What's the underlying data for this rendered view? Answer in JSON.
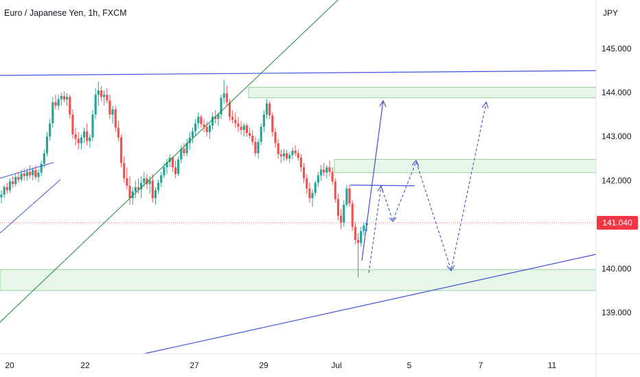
{
  "chart_data": {
    "type": "candlestick",
    "title": "Euro / Japanese Yen, 1h, FXCM",
    "currency_label": "JPY",
    "y_ticks": [
      "145.000",
      "144.000",
      "143.000",
      "142.000",
      "141.000",
      "140.000",
      "139.000"
    ],
    "y_tick_values": [
      145,
      144,
      143,
      142,
      141,
      140,
      139
    ],
    "x_ticks": [
      "20",
      "22",
      "27",
      "29",
      "Jul",
      "5",
      "7",
      "11"
    ],
    "last_price": 141.04,
    "last_price_label": "141.040",
    "ylim": [
      138.2,
      146.1
    ],
    "colors": {
      "up": "#26a69a",
      "down": "#ef5350",
      "price_label_bg": "#f23645",
      "zone_fill": "#e8f5e9",
      "zone_border": "#81c784",
      "blue_line": "#3f51d8",
      "green_line": "#1b8a3c",
      "projection": "#4050c8"
    },
    "zones": [
      {
        "name": "resistance-zone-top",
        "low": 143.88,
        "high": 144.12
      },
      {
        "name": "resistance-zone-mid",
        "low": 142.18,
        "high": 142.48
      },
      {
        "name": "support-zone",
        "low": 139.5,
        "high": 139.98
      }
    ],
    "candles": [
      [
        141.62,
        141.78,
        141.48,
        141.68
      ],
      [
        141.68,
        141.9,
        141.6,
        141.85
      ],
      [
        141.85,
        141.95,
        141.7,
        141.78
      ],
      [
        141.78,
        142.05,
        141.72,
        141.98
      ],
      [
        141.98,
        142.1,
        141.84,
        141.92
      ],
      [
        141.92,
        142.15,
        141.86,
        142.08
      ],
      [
        142.08,
        142.2,
        141.95,
        142.02
      ],
      [
        142.02,
        142.25,
        141.96,
        142.16
      ],
      [
        142.16,
        142.28,
        142.0,
        142.1
      ],
      [
        142.1,
        142.28,
        142.0,
        142.2
      ],
      [
        142.2,
        142.35,
        142.05,
        142.12
      ],
      [
        142.12,
        142.3,
        142.0,
        142.24
      ],
      [
        142.24,
        142.34,
        142.02,
        142.08
      ],
      [
        142.08,
        142.26,
        141.96,
        142.18
      ],
      [
        142.18,
        142.45,
        142.1,
        142.38
      ],
      [
        142.38,
        142.7,
        142.3,
        142.62
      ],
      [
        142.62,
        143.1,
        142.55,
        143.0
      ],
      [
        143.0,
        143.4,
        142.9,
        143.3
      ],
      [
        143.3,
        143.9,
        143.2,
        143.78
      ],
      [
        143.78,
        143.95,
        143.62,
        143.7
      ],
      [
        143.7,
        143.96,
        143.6,
        143.85
      ],
      [
        143.85,
        144.0,
        143.7,
        143.92
      ],
      [
        143.92,
        144.02,
        143.78,
        143.84
      ],
      [
        143.84,
        143.98,
        143.7,
        143.9
      ],
      [
        143.9,
        143.95,
        143.4,
        143.5
      ],
      [
        143.5,
        143.62,
        142.95,
        143.05
      ],
      [
        143.05,
        143.2,
        142.8,
        142.95
      ],
      [
        142.95,
        143.1,
        142.7,
        142.85
      ],
      [
        142.85,
        143.05,
        142.7,
        142.98
      ],
      [
        142.98,
        143.2,
        142.85,
        143.12
      ],
      [
        143.12,
        143.3,
        142.8,
        142.9
      ],
      [
        142.9,
        143.05,
        142.75,
        142.98
      ],
      [
        142.98,
        143.6,
        142.9,
        143.5
      ],
      [
        143.5,
        144.1,
        143.4,
        143.95
      ],
      [
        143.95,
        144.25,
        143.7,
        144.05
      ],
      [
        144.05,
        144.15,
        143.8,
        143.9
      ],
      [
        143.9,
        144.05,
        143.7,
        143.95
      ],
      [
        143.95,
        144.1,
        143.75,
        143.82
      ],
      [
        143.82,
        143.95,
        143.4,
        143.5
      ],
      [
        143.5,
        143.7,
        143.3,
        143.62
      ],
      [
        143.62,
        143.7,
        143.1,
        143.2
      ],
      [
        143.2,
        143.35,
        142.9,
        142.98
      ],
      [
        142.98,
        143.05,
        142.3,
        142.4
      ],
      [
        142.4,
        142.55,
        141.95,
        142.05
      ],
      [
        142.05,
        142.3,
        141.8,
        141.88
      ],
      [
        141.88,
        142.1,
        141.45,
        141.6
      ],
      [
        141.6,
        141.85,
        141.45,
        141.75
      ],
      [
        141.75,
        142.0,
        141.6,
        141.85
      ],
      [
        141.85,
        142.05,
        141.7,
        141.8
      ],
      [
        141.8,
        142.1,
        141.6,
        141.95
      ],
      [
        141.95,
        142.2,
        141.85,
        142.05
      ],
      [
        142.05,
        142.15,
        141.8,
        141.92
      ],
      [
        141.92,
        142.1,
        141.7,
        142.0
      ],
      [
        142.0,
        142.15,
        141.5,
        141.6
      ],
      [
        141.6,
        141.85,
        141.45,
        141.78
      ],
      [
        141.78,
        142.02,
        141.7,
        141.95
      ],
      [
        141.95,
        142.2,
        141.85,
        142.12
      ],
      [
        142.12,
        142.4,
        142.05,
        142.3
      ],
      [
        142.3,
        142.5,
        142.15,
        142.42
      ],
      [
        142.42,
        142.6,
        142.3,
        142.52
      ],
      [
        142.52,
        142.55,
        142.2,
        142.3
      ],
      [
        142.3,
        142.45,
        142.05,
        142.15
      ],
      [
        142.15,
        142.55,
        142.1,
        142.48
      ],
      [
        142.48,
        142.8,
        142.4,
        142.72
      ],
      [
        142.72,
        142.85,
        142.55,
        142.62
      ],
      [
        142.62,
        142.95,
        142.55,
        142.85
      ],
      [
        142.85,
        143.1,
        142.7,
        142.98
      ],
      [
        142.98,
        143.2,
        142.85,
        143.12
      ],
      [
        143.12,
        143.4,
        143.0,
        143.3
      ],
      [
        143.3,
        143.55,
        143.18,
        143.45
      ],
      [
        143.45,
        143.5,
        143.2,
        143.28
      ],
      [
        143.28,
        143.4,
        143.1,
        143.22
      ],
      [
        143.22,
        143.35,
        143.0,
        143.1
      ],
      [
        143.1,
        143.3,
        142.95,
        143.25
      ],
      [
        143.25,
        143.55,
        143.15,
        143.45
      ],
      [
        143.45,
        143.6,
        143.3,
        143.4
      ],
      [
        143.4,
        143.55,
        143.25,
        143.5
      ],
      [
        143.5,
        143.95,
        143.4,
        143.88
      ],
      [
        143.88,
        144.3,
        143.75,
        143.98
      ],
      [
        143.98,
        144.15,
        143.7,
        143.78
      ],
      [
        143.78,
        143.85,
        143.35,
        143.45
      ],
      [
        143.45,
        143.6,
        143.3,
        143.38
      ],
      [
        143.38,
        143.55,
        143.2,
        143.3
      ],
      [
        143.3,
        143.45,
        143.1,
        143.22
      ],
      [
        143.22,
        143.35,
        143.05,
        143.15
      ],
      [
        143.15,
        143.3,
        143.0,
        143.25
      ],
      [
        143.25,
        143.3,
        143.0,
        143.08
      ],
      [
        143.08,
        143.2,
        142.95,
        143.02
      ],
      [
        143.02,
        143.15,
        142.8,
        142.88
      ],
      [
        142.88,
        143.0,
        142.55,
        142.62
      ],
      [
        142.62,
        142.95,
        142.5,
        142.88
      ],
      [
        142.88,
        143.3,
        142.8,
        143.22
      ],
      [
        143.22,
        143.6,
        143.1,
        143.5
      ],
      [
        143.5,
        143.85,
        143.4,
        143.75
      ],
      [
        143.75,
        143.8,
        143.4,
        143.48
      ],
      [
        143.48,
        143.55,
        143.0,
        143.1
      ],
      [
        143.1,
        143.2,
        142.75,
        142.85
      ],
      [
        142.85,
        142.95,
        142.5,
        142.6
      ],
      [
        142.6,
        142.7,
        142.4,
        142.55
      ],
      [
        142.55,
        142.72,
        142.45,
        142.62
      ],
      [
        142.62,
        142.7,
        142.45,
        142.5
      ],
      [
        142.5,
        142.65,
        142.4,
        142.58
      ],
      [
        142.58,
        142.75,
        142.48,
        142.68
      ],
      [
        142.68,
        142.8,
        142.55,
        142.62
      ],
      [
        142.62,
        142.7,
        142.45,
        142.52
      ],
      [
        142.52,
        142.6,
        142.2,
        142.3
      ],
      [
        142.3,
        142.4,
        141.95,
        142.05
      ],
      [
        142.05,
        142.15,
        141.7,
        141.82
      ],
      [
        141.82,
        141.95,
        141.5,
        141.6
      ],
      [
        141.6,
        141.8,
        141.4,
        141.72
      ],
      [
        141.72,
        142.0,
        141.65,
        141.95
      ],
      [
        141.95,
        142.2,
        141.85,
        142.12
      ],
      [
        142.12,
        142.35,
        142.0,
        142.25
      ],
      [
        142.25,
        142.4,
        142.1,
        142.18
      ],
      [
        142.18,
        142.35,
        142.05,
        142.3
      ],
      [
        142.3,
        142.45,
        142.1,
        142.2
      ],
      [
        142.2,
        142.3,
        141.9,
        141.98
      ],
      [
        141.98,
        142.05,
        141.5,
        141.58
      ],
      [
        141.58,
        141.7,
        141.1,
        141.2
      ],
      [
        141.2,
        141.35,
        140.9,
        141.05
      ],
      [
        141.05,
        141.55,
        140.95,
        141.45
      ],
      [
        141.45,
        141.9,
        141.4,
        141.82
      ],
      [
        141.82,
        141.9,
        141.4,
        141.48
      ],
      [
        141.48,
        141.55,
        140.85,
        140.95
      ],
      [
        140.95,
        141.05,
        140.55,
        140.65
      ],
      [
        140.65,
        140.8,
        139.8,
        140.58
      ],
      [
        140.58,
        140.95,
        140.5,
        140.85
      ],
      [
        140.85,
        141.05,
        140.75,
        140.98
      ],
      [
        140.98,
        141.1,
        140.85,
        141.04
      ]
    ]
  }
}
